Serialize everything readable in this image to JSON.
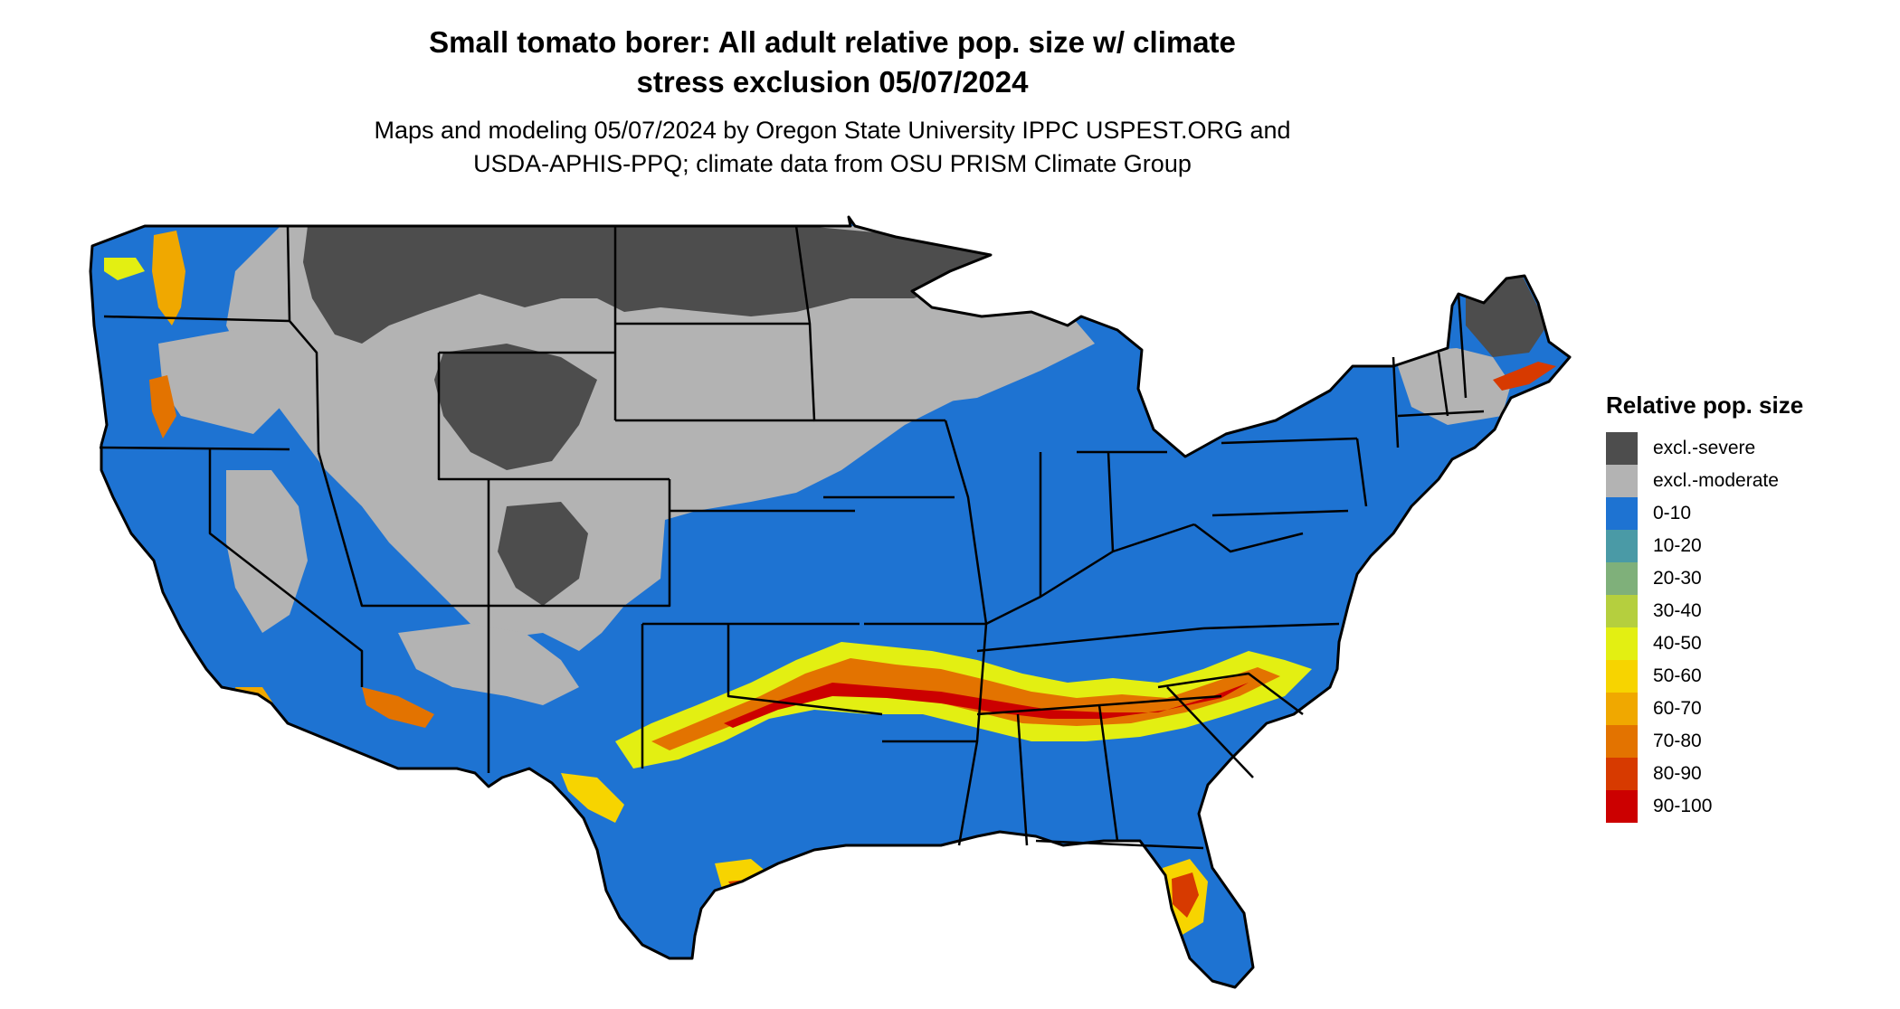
{
  "title_lines": [
    "Small tomato borer: All adult relative pop. size w/ climate",
    "stress exclusion 05/07/2024"
  ],
  "subtitle_lines": [
    "Maps and modeling 05/07/2024 by Oregon State University IPPC USPEST.ORG and",
    "USDA-APHIS-PPQ; climate data from OSU PRISM Climate Group"
  ],
  "legend": {
    "title": "Relative pop. size",
    "items": [
      {
        "label": "excl.-severe",
        "color": "#4d4d4d"
      },
      {
        "label": "excl.-moderate",
        "color": "#b3b3b3"
      },
      {
        "label": "0-10",
        "color": "#1e73d2"
      },
      {
        "label": "10-20",
        "color": "#4a9aa6"
      },
      {
        "label": "20-30",
        "color": "#7fb07a"
      },
      {
        "label": "30-40",
        "color": "#b5cf3e"
      },
      {
        "label": "40-50",
        "color": "#e3ef12"
      },
      {
        "label": "50-60",
        "color": "#f7d400"
      },
      {
        "label": "60-70",
        "color": "#f0a800"
      },
      {
        "label": "70-80",
        "color": "#e37300"
      },
      {
        "label": "80-90",
        "color": "#d73a00"
      },
      {
        "label": "90-100",
        "color": "#cc0000"
      }
    ]
  }
}
